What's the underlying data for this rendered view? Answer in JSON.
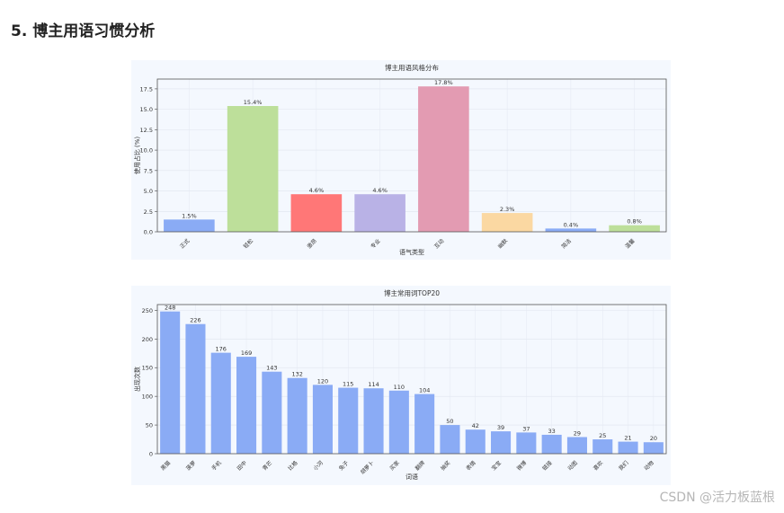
{
  "page": {
    "section_heading": "5. 博主用语习惯分析",
    "watermark": "CSDN @活力板蓝根"
  },
  "chart_data": [
    {
      "type": "bar",
      "title": "博主用语风格分布",
      "xlabel": "语气类型",
      "ylabel": "使用占比 (%)",
      "categories": [
        "正式",
        "轻松",
        "激昂",
        "专业",
        "互动",
        "幽默",
        "简洁",
        "温馨"
      ],
      "values": [
        1.5,
        15.4,
        4.6,
        4.6,
        17.8,
        2.3,
        0.4,
        0.8
      ],
      "value_labels": [
        "1.5%",
        "15.4%",
        "4.6%",
        "4.6%",
        "17.8%",
        "2.3%",
        "0.4%",
        "0.8%"
      ],
      "bar_colors": [
        "#8aabf5",
        "#bddf9a",
        "#ff7777",
        "#b9b2e6",
        "#e39bb2",
        "#fbd8a2",
        "#8aabf5",
        "#bddf9a"
      ],
      "ylim": [
        0,
        18.7
      ],
      "yticks": [
        "0.0",
        "2.5",
        "5.0",
        "7.5",
        "10.0",
        "12.5",
        "15.0",
        "17.5"
      ],
      "grid": true
    },
    {
      "type": "bar",
      "title": "博主常用词TOP20",
      "xlabel": "词语",
      "ylabel": "出现次数",
      "categories": [
        "黑猫",
        "菠萝",
        "手机",
        "田中",
        "青芒",
        "比格",
        "小河",
        "兔子",
        "胡萝卜",
        "买家",
        "翻牌",
        "抽奖",
        "表情",
        "宝宝",
        "微博",
        "链接",
        "动图",
        "喜欢",
        "我们",
        "动物"
      ],
      "values": [
        248,
        226,
        176,
        169,
        143,
        132,
        120,
        115,
        114,
        110,
        104,
        50,
        42,
        39,
        37,
        33,
        29,
        25,
        21,
        20
      ],
      "bar_color": "#8aabf5",
      "ylim": [
        0,
        260
      ],
      "yticks": [
        "0",
        "50",
        "100",
        "150",
        "200",
        "250"
      ],
      "grid": true
    }
  ]
}
